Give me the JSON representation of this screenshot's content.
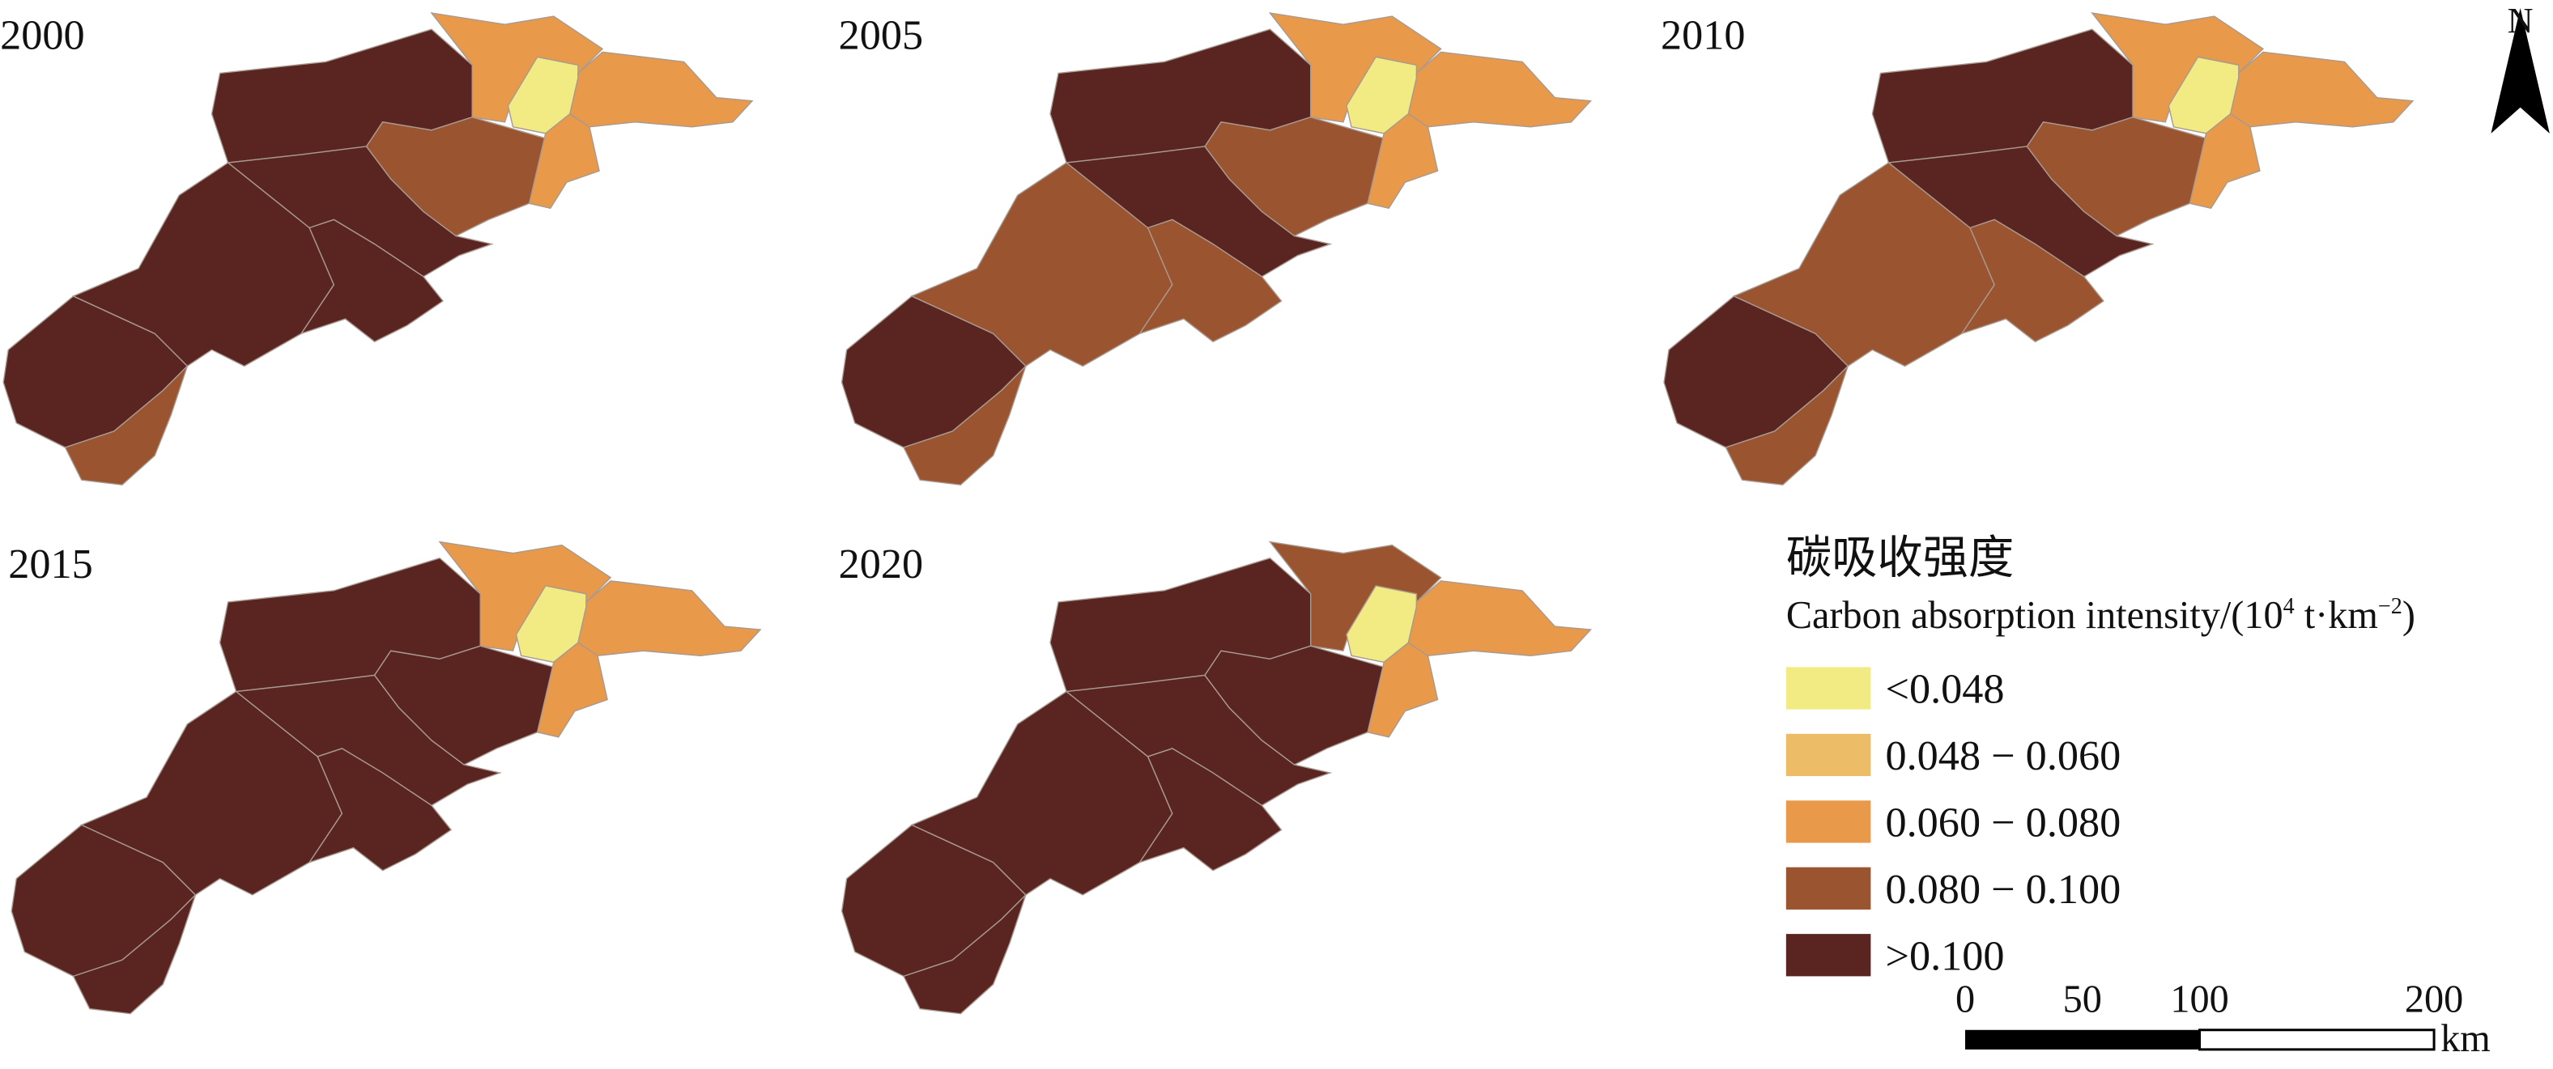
{
  "panels": [
    {
      "year": "2000",
      "colors": [
        "#5a2420",
        "#9b5430",
        "#5a2420",
        "#5a2420",
        "#5a2420",
        "#5a2420",
        "#9b5430",
        "#e8994a",
        "#f2ea83",
        "#e8994a",
        "#e8994a"
      ]
    },
    {
      "year": "2005",
      "colors": [
        "#5a2420",
        "#9b5430",
        "#9b5430",
        "#5a2420",
        "#5a2420",
        "#9b5430",
        "#9b5430",
        "#e8994a",
        "#f2ea83",
        "#e8994a",
        "#e8994a"
      ]
    },
    {
      "year": "2010",
      "colors": [
        "#5a2420",
        "#9b5430",
        "#9b5430",
        "#5a2420",
        "#5a2420",
        "#9b5430",
        "#9b5430",
        "#e8994a",
        "#f2ea83",
        "#e8994a",
        "#e8994a"
      ]
    },
    {
      "year": "2015",
      "colors": [
        "#5a2420",
        "#5a2420",
        "#5a2420",
        "#5a2420",
        "#5a2420",
        "#5a2420",
        "#5a2420",
        "#e8994a",
        "#f2ea83",
        "#e8994a",
        "#e8994a"
      ]
    },
    {
      "year": "2020",
      "colors": [
        "#5a2420",
        "#5a2420",
        "#5a2420",
        "#5a2420",
        "#5a2420",
        "#5a2420",
        "#5a2420",
        "#9b5430",
        "#f2ea83",
        "#e8994a",
        "#e8994a"
      ]
    }
  ],
  "legend": {
    "title": "碳吸收强度",
    "subtitle": [
      "Carbon absorption intensity/(10",
      "4",
      " t·km",
      "−2",
      ")"
    ],
    "entries": [
      {
        "label": "<0.048",
        "color": "#f2ea83"
      },
      {
        "label": "0.048 − 0.060",
        "color": "#ecbd66"
      },
      {
        "label": "0.060 − 0.080",
        "color": "#e8994a"
      },
      {
        "label": "0.080 − 0.100",
        "color": "#9b5430"
      },
      {
        "label": ">0.100",
        "color": "#5a2420"
      }
    ]
  },
  "scale_bar": {
    "ticks": [
      0,
      50,
      100,
      200
    ],
    "unit": "km"
  },
  "north": "N"
}
